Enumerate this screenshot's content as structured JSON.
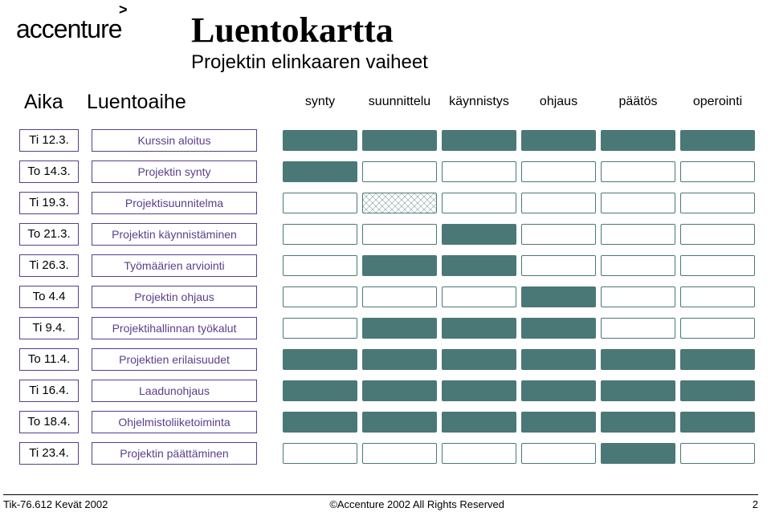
{
  "colors": {
    "accent": "#4a7876",
    "purple_border": "#5a3e8c",
    "text": "#000000"
  },
  "logo_text": "accenture",
  "title": "Luentokartta",
  "subtitle": "Projektin elinkaaren vaiheet",
  "headers": {
    "aika": "Aika",
    "topic": "Luentoaihe"
  },
  "phases": [
    "synty",
    "suunnittelu",
    "käynnistys",
    "ohjaus",
    "päätös",
    "operointi"
  ],
  "rows": [
    {
      "date": "Ti 12.3.",
      "topic": "Kurssin aloitus",
      "cells": [
        "filled",
        "filled",
        "filled",
        "filled",
        "filled",
        "filled"
      ]
    },
    {
      "date": "To 14.3.",
      "topic": "Projektin synty",
      "cells": [
        "filled",
        "empty",
        "empty",
        "empty",
        "empty",
        "empty"
      ]
    },
    {
      "date": "Ti 19.3.",
      "topic": "Projektisuunnitelma",
      "cells": [
        "empty",
        "hatched",
        "empty",
        "empty",
        "empty",
        "empty"
      ]
    },
    {
      "date": "To 21.3.",
      "topic": "Projektin käynnistäminen",
      "cells": [
        "empty",
        "empty",
        "filled",
        "empty",
        "empty",
        "empty"
      ]
    },
    {
      "date": "Ti 26.3.",
      "topic": "Työmäärien arviointi",
      "cells": [
        "empty",
        "filled",
        "filled",
        "empty",
        "empty",
        "empty"
      ]
    },
    {
      "date": "To 4.4",
      "topic": "Projektin ohjaus",
      "cells": [
        "empty",
        "empty",
        "empty",
        "filled",
        "empty",
        "empty"
      ]
    },
    {
      "date": "Ti 9.4.",
      "topic": "Projektihallinnan työkalut",
      "cells": [
        "empty",
        "filled",
        "filled",
        "filled",
        "empty",
        "empty"
      ]
    },
    {
      "date": "To 11.4.",
      "topic": "Projektien erilaisuudet",
      "cells": [
        "filled",
        "filled",
        "filled",
        "filled",
        "filled",
        "filled"
      ]
    },
    {
      "date": "Ti 16.4.",
      "topic": "Laadunohjaus",
      "cells": [
        "filled",
        "filled",
        "filled",
        "filled",
        "filled",
        "filled"
      ]
    },
    {
      "date": "To 18.4.",
      "topic": "Ohjelmistoliiketoiminta",
      "cells": [
        "filled",
        "filled",
        "filled",
        "filled",
        "filled",
        "filled"
      ]
    },
    {
      "date": "Ti 23.4.",
      "topic": "Projektin päättäminen",
      "cells": [
        "empty",
        "empty",
        "empty",
        "empty",
        "filled",
        "empty"
      ]
    }
  ],
  "footer": {
    "left": "Tik-76.612 Kevät 2002",
    "center": "©Accenture 2002 All Rights Reserved",
    "page": "2"
  }
}
